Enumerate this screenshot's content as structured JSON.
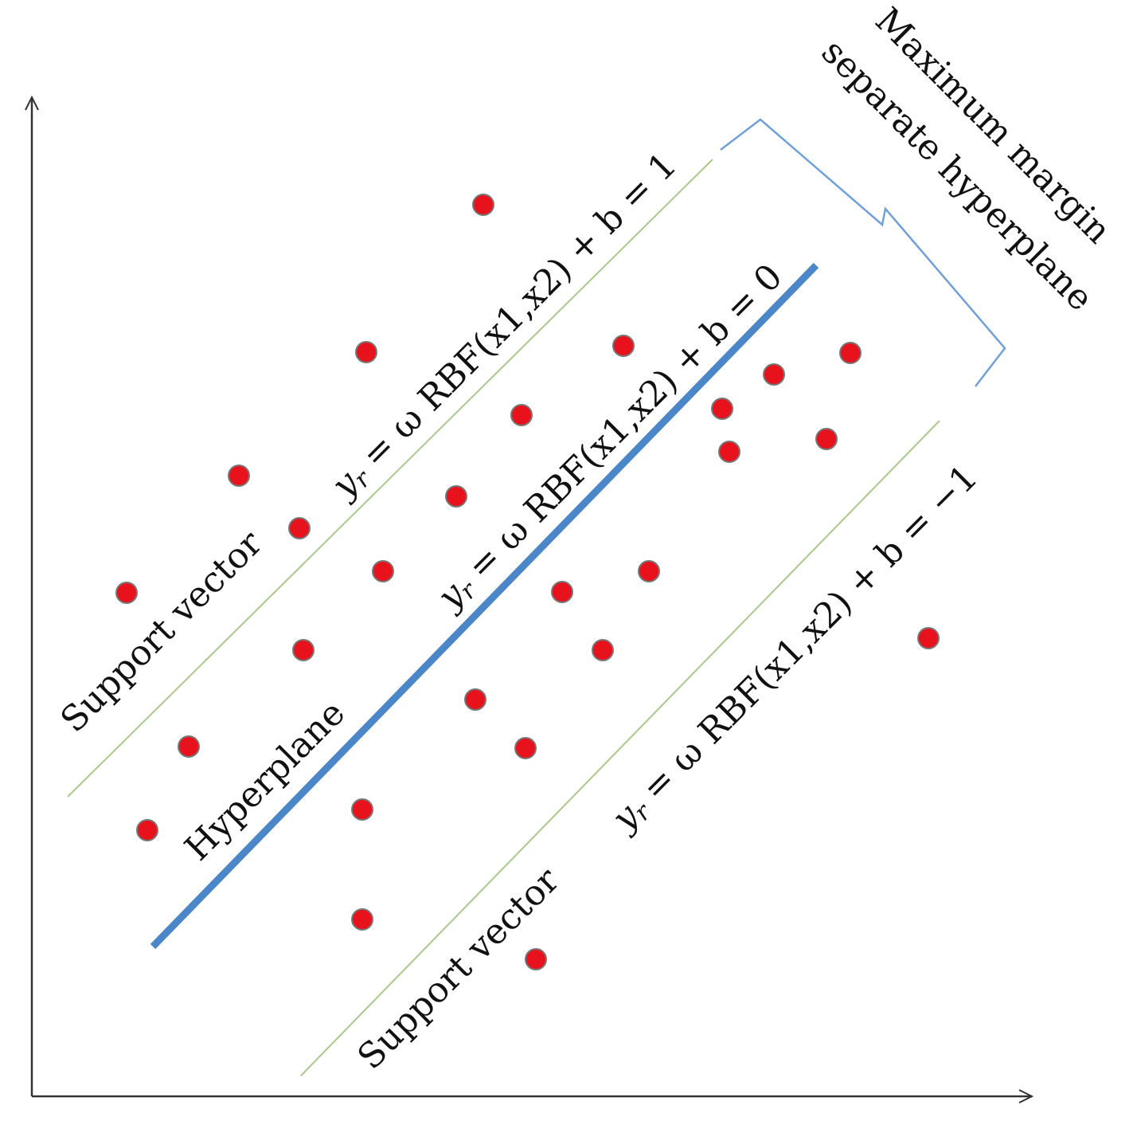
{
  "title": {
    "line1": "Maximum margin",
    "line2": "separate hyperplane"
  },
  "labels": {
    "support_vector_upper": "Support vector",
    "hyperplane": "Hyperplane",
    "support_vector_lower": "Support vector"
  },
  "equations": [
    {
      "var": "y",
      "sub": "r",
      "rhs": " = ω RBF(x1,x2) + b = 1"
    },
    {
      "var": "y",
      "sub": "r",
      "rhs": " = ω RBF(x1,x2) + b = 0"
    },
    {
      "var": "y",
      "sub": "r",
      "rhs": " = ω RBF(x1,x2) + b = −1"
    }
  ]
}
